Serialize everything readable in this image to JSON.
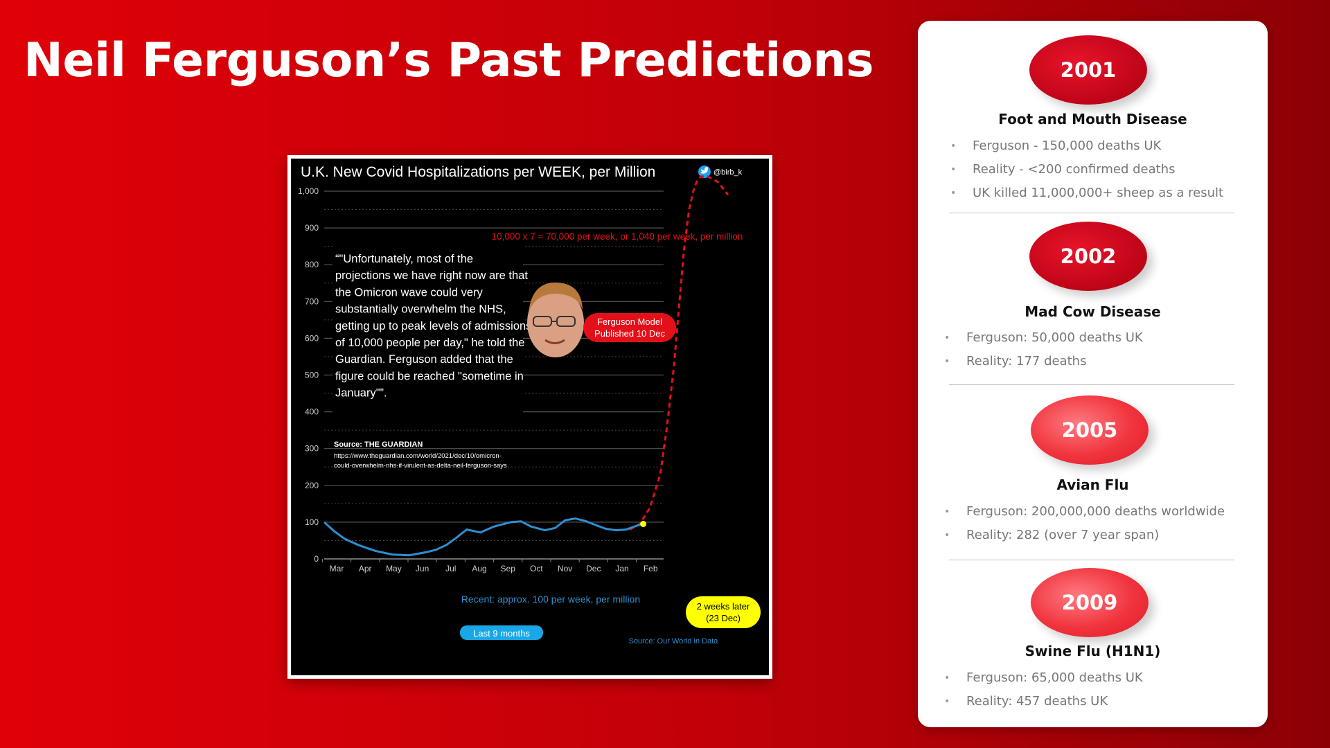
{
  "slide": {
    "title": "Neil Ferguson’s Past Predictions"
  },
  "chart_data": {
    "type": "line",
    "title": "U.K. New Covid Hospitalizations per WEEK, per Million",
    "handle": "@birb_k",
    "ylim": [
      0,
      1000
    ],
    "yticks": [
      0,
      100,
      200,
      300,
      400,
      500,
      600,
      700,
      800,
      900,
      "1,000"
    ],
    "ytick_values": [
      0,
      100,
      200,
      300,
      400,
      500,
      600,
      700,
      800,
      900,
      1000
    ],
    "xticks": [
      "Mar",
      "Apr",
      "May",
      "Jun",
      "Jul",
      "Aug",
      "Sep",
      "Oct",
      "Nov",
      "Dec",
      "Jan",
      "Feb"
    ],
    "grid": true,
    "series": [
      {
        "name": "Recent: approx. 100 per week, per million",
        "color": "#2e8fd0",
        "x": [
          0,
          0.3,
          0.6,
          1,
          1.5,
          2,
          2.5,
          3,
          3.3,
          3.6,
          3.9,
          4.2,
          4.6,
          5,
          5.5,
          5.8,
          6.1,
          6.5,
          6.8,
          7.1,
          7.4,
          7.7,
          8,
          8.3,
          8.6,
          8.9,
          9.2,
          9.4
        ],
        "y": [
          100,
          75,
          55,
          38,
          22,
          12,
          10,
          18,
          25,
          38,
          58,
          80,
          72,
          88,
          100,
          102,
          88,
          78,
          84,
          105,
          110,
          103,
          92,
          82,
          78,
          80,
          90,
          95
        ]
      },
      {
        "name": "Ferguson Model Published 10 Dec",
        "color": "#e3101a",
        "dashed": true,
        "x": [
          9.0,
          9.3,
          9.6,
          9.9,
          10.1,
          10.3,
          10.45,
          10.6,
          10.75,
          10.9,
          11.0,
          11.1,
          11.3,
          11.6,
          11.9
        ],
        "y": [
          80,
          95,
          140,
          230,
          360,
          520,
          680,
          840,
          950,
          1010,
          1030,
          1040,
          1040,
          1025,
          990
        ]
      }
    ],
    "annotations": {
      "formula": "10,000 x 7 = 70,000 per week, or 1,040 per week, per million",
      "quote": "“\"Unfortunately, most of the projections we have right now are that the Omicron wave could very substantially overwhelm the NHS, getting up to peak levels of admissions of 10,000 people per day,\" he told the Guardian. Ferguson added that the figure could be reached \"sometime in January\"”.",
      "quote_lines": [
        "“\"Unfortunately, most of the",
        "projections we have right now are that",
        "the Omicron wave could very",
        "substantially overwhelm the NHS,",
        "getting up to peak levels of admissions",
        "of 10,000 people per day,\" he told the",
        "Guardian. Ferguson added that the",
        "figure could be reached \"sometime in",
        "January\"”."
      ],
      "source_label": "Source: THE GUARDIAN",
      "source_url_lines": [
        "https://www.theguardian.com/world/2021/dec/10/omicron-",
        "could-overwhelm-nhs-if-virulent-as-delta-neil-ferguson-says"
      ],
      "model_label": [
        "Ferguson Model",
        "Published 10 Dec"
      ],
      "recent_label": "Recent: approx. 100 per week, per million",
      "last9_label": "Last 9 months",
      "later_label": [
        "2 weeks later",
        "(23 Dec)"
      ],
      "data_source": "Source: Our World in Data"
    }
  },
  "panel": {
    "sections": [
      {
        "year": "2001",
        "title": "Foot and Mouth Disease",
        "bullets": [
          "Ferguson - 150,000 deaths UK",
          "Reality - <200 confirmed deaths",
          "UK killed 11,000,000+ sheep as a result"
        ]
      },
      {
        "year": "2002",
        "title": "Mad Cow Disease",
        "bullets": [
          "Ferguson: 50,000 deaths UK",
          "Reality: 177 deaths"
        ]
      },
      {
        "year": "2005",
        "title": "Avian Flu",
        "bullets": [
          "Ferguson: 200,000,000 deaths worldwide",
          "Reality: 282 (over 7 year span)"
        ]
      },
      {
        "year": "2009",
        "title": "Swine Flu (H1N1)",
        "bullets": [
          "Ferguson: 65,000 deaths UK",
          "Reality: 457 deaths UK"
        ]
      }
    ]
  },
  "colors": {
    "accent_red": "#e3101a",
    "recent_blue": "#2e8fd0",
    "label_yellow": "#ffff00"
  }
}
